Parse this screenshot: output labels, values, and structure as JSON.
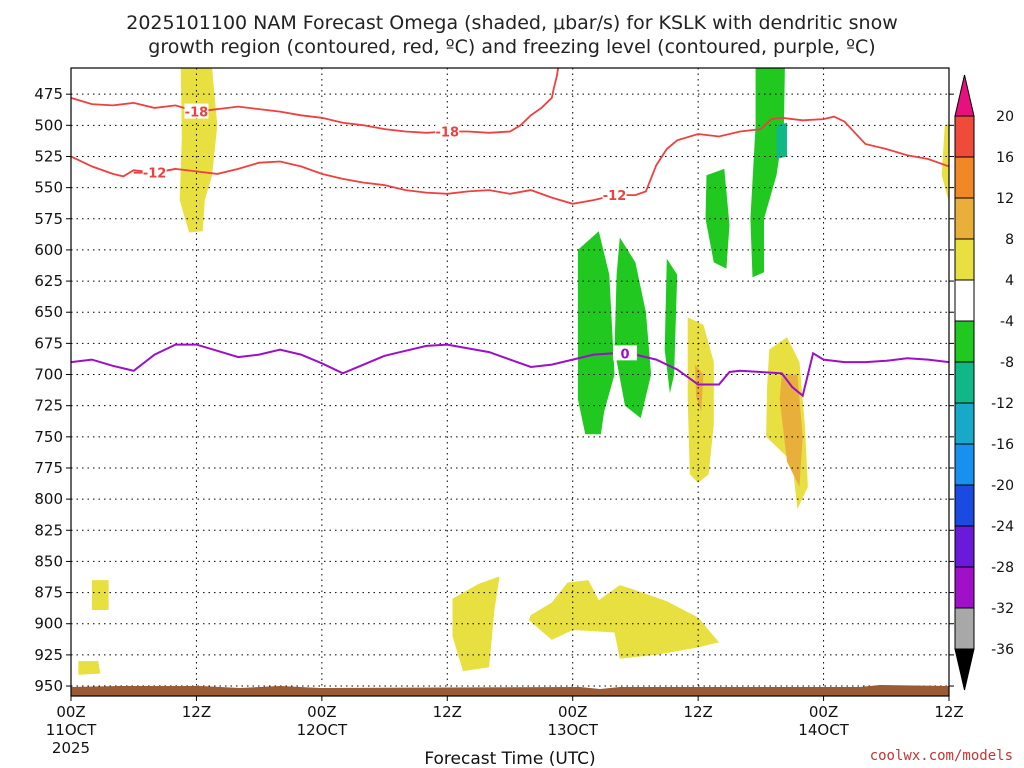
{
  "chart_data": {
    "type": "time-height",
    "title": [
      "2025101100 NAM Forecast Omega (shaded, μbar/s) for KSLK with dendritic snow",
      "growth region (contoured, red, ºC) and freezing level (contoured, purple, ºC)"
    ],
    "xlabel": "Forecast Time (UTC)",
    "credit": "coolwx.com/models",
    "x_range_hours": [
      0,
      84
    ],
    "x_ticks": [
      {
        "hour": 0,
        "label": "00Z",
        "sub": "11OCT",
        "sub2": "2025"
      },
      {
        "hour": 12,
        "label": "12Z"
      },
      {
        "hour": 24,
        "label": "00Z",
        "sub": "12OCT"
      },
      {
        "hour": 36,
        "label": "12Z"
      },
      {
        "hour": 48,
        "label": "00Z",
        "sub": "13OCT"
      },
      {
        "hour": 60,
        "label": "12Z"
      },
      {
        "hour": 72,
        "label": "00Z",
        "sub": "14OCT"
      },
      {
        "hour": 84,
        "label": "12Z"
      }
    ],
    "y_range_hpa": [
      454,
      958
    ],
    "y_ticks": [
      475,
      500,
      525,
      550,
      575,
      600,
      625,
      650,
      675,
      700,
      725,
      750,
      775,
      800,
      825,
      850,
      875,
      900,
      925,
      950
    ],
    "colorbar": {
      "levels": [
        -36,
        -32,
        -28,
        -24,
        -20,
        -16,
        -12,
        -8,
        -4,
        4,
        8,
        12,
        16,
        20
      ],
      "labels": [
        "20",
        "16",
        "12",
        "8",
        "4",
        "-4",
        "-8",
        "-12",
        "-16",
        "-20",
        "-24",
        "-28",
        "-32",
        "-36"
      ],
      "colors_top_down": [
        "#e8107e",
        "#f04a3a",
        "#f08826",
        "#e8b03a",
        "#e8e040",
        "#ffffff",
        "#20c820",
        "#10b888",
        "#18a8c8",
        "#1890f0",
        "#1a4ae0",
        "#6a1ad8",
        "#a010c8",
        "#a8a8a8",
        "#000000"
      ]
    },
    "contours": [
      {
        "name": "minus18",
        "label": "-18",
        "color": "#ee4040",
        "points": [
          [
            0,
            478
          ],
          [
            2,
            483
          ],
          [
            4,
            484
          ],
          [
            6,
            482
          ],
          [
            8,
            486
          ],
          [
            10,
            484
          ],
          [
            12,
            489
          ],
          [
            14,
            487
          ],
          [
            16,
            485
          ],
          [
            18,
            487
          ],
          [
            20,
            489
          ],
          [
            22,
            492
          ],
          [
            24,
            494
          ],
          [
            26,
            498
          ],
          [
            28,
            500
          ],
          [
            30,
            503
          ],
          [
            32,
            505
          ],
          [
            34,
            506
          ],
          [
            36,
            505
          ],
          [
            38,
            505
          ],
          [
            40,
            506
          ],
          [
            42,
            505
          ],
          [
            43,
            500
          ],
          [
            44,
            492
          ],
          [
            45,
            486
          ],
          [
            46,
            478
          ],
          [
            46.2,
            470
          ],
          [
            46.5,
            460
          ],
          [
            46.6,
            454
          ]
        ],
        "label_at": [
          36,
          505
        ]
      },
      {
        "name": "minus18b",
        "color": "#ee4040",
        "points": [
          [
            11,
            490
          ],
          [
            12,
            489
          ],
          [
            14,
            487
          ]
        ],
        "label": "-18",
        "label_at": [
          12,
          489
        ]
      },
      {
        "name": "minus12",
        "label": "-12",
        "color": "#ee4040",
        "points": [
          [
            0,
            525
          ],
          [
            2,
            533
          ],
          [
            4,
            539
          ],
          [
            5,
            541
          ],
          [
            6,
            536
          ],
          [
            8,
            538
          ],
          [
            10,
            535
          ],
          [
            12,
            537
          ],
          [
            14,
            539
          ],
          [
            16,
            535
          ],
          [
            18,
            530
          ],
          [
            20,
            529
          ],
          [
            22,
            533
          ],
          [
            24,
            539
          ],
          [
            26,
            543
          ],
          [
            28,
            546
          ],
          [
            30,
            548
          ],
          [
            32,
            552
          ],
          [
            34,
            554
          ],
          [
            36,
            555
          ],
          [
            38,
            553
          ],
          [
            40,
            552
          ],
          [
            42,
            555
          ],
          [
            44,
            552
          ],
          [
            46,
            558
          ],
          [
            48,
            563
          ],
          [
            50,
            560
          ],
          [
            52,
            556
          ],
          [
            54,
            556
          ],
          [
            55,
            553
          ],
          [
            56,
            532
          ],
          [
            57,
            519
          ],
          [
            58,
            512
          ],
          [
            60,
            507
          ],
          [
            62,
            509
          ],
          [
            64,
            505
          ],
          [
            66,
            503
          ],
          [
            67,
            495
          ],
          [
            68,
            494
          ],
          [
            70,
            496
          ],
          [
            72,
            495
          ],
          [
            73,
            493
          ],
          [
            74,
            497
          ],
          [
            75,
            506
          ],
          [
            76,
            515
          ],
          [
            78,
            519
          ],
          [
            80,
            524
          ],
          [
            82,
            527
          ],
          [
            84,
            533
          ],
          [
            85,
            535
          ]
        ],
        "label_at": [
          52,
          556
        ]
      },
      {
        "name": "minus12b",
        "color": "#ee4040",
        "points": [
          [
            6,
            538
          ],
          [
            8,
            538
          ],
          [
            10,
            535
          ]
        ],
        "label": "-12",
        "label_at": [
          8,
          538
        ]
      },
      {
        "name": "freezing0",
        "label": "0",
        "color": "#9b10c8",
        "points": [
          [
            0,
            690
          ],
          [
            2,
            688
          ],
          [
            4,
            693
          ],
          [
            6,
            697
          ],
          [
            8,
            684
          ],
          [
            10,
            676
          ],
          [
            12,
            676
          ],
          [
            14,
            681
          ],
          [
            16,
            686
          ],
          [
            18,
            684
          ],
          [
            20,
            680
          ],
          [
            22,
            684
          ],
          [
            24,
            691
          ],
          [
            26,
            699
          ],
          [
            28,
            692
          ],
          [
            30,
            685
          ],
          [
            32,
            681
          ],
          [
            34,
            677
          ],
          [
            36,
            676
          ],
          [
            38,
            679
          ],
          [
            40,
            682
          ],
          [
            42,
            688
          ],
          [
            44,
            694
          ],
          [
            46,
            692
          ],
          [
            48,
            688
          ],
          [
            50,
            684
          ],
          [
            52,
            683
          ],
          [
            54,
            684
          ],
          [
            56,
            688
          ],
          [
            58,
            696
          ],
          [
            60,
            708
          ],
          [
            62,
            708
          ],
          [
            63,
            698
          ],
          [
            64,
            697
          ],
          [
            66,
            698
          ],
          [
            68,
            699
          ],
          [
            69,
            710
          ],
          [
            70,
            717
          ],
          [
            70.5,
            700
          ],
          [
            71,
            683
          ],
          [
            72,
            688
          ],
          [
            74,
            690
          ],
          [
            76,
            690
          ],
          [
            78,
            689
          ],
          [
            80,
            687
          ],
          [
            82,
            688
          ],
          [
            84,
            690
          ],
          [
            85,
            692
          ]
        ],
        "label_at": [
          53,
          683
        ]
      }
    ],
    "shaded_regions": [
      {
        "name": "yellow-top-left",
        "value_range": "4 to 8",
        "color": "#e8e040",
        "points": [
          [
            10.5,
            454
          ],
          [
            13.5,
            454
          ],
          [
            14,
            500
          ],
          [
            13.5,
            540
          ],
          [
            12.8,
            560
          ],
          [
            12.6,
            585
          ],
          [
            11.3,
            586
          ],
          [
            10.4,
            560
          ],
          [
            10.6,
            510
          ]
        ]
      },
      {
        "name": "yellow-small-left",
        "value_range": "4 to 8",
        "color": "#e8e040",
        "points": [
          [
            2,
            865
          ],
          [
            3.6,
            865
          ],
          [
            3.6,
            889
          ],
          [
            2,
            889
          ]
        ]
      },
      {
        "name": "yellow-small-left2",
        "value_range": "4 to 8",
        "color": "#e8e040",
        "points": [
          [
            0.7,
            930
          ],
          [
            2.6,
            930
          ],
          [
            2.8,
            940
          ],
          [
            0.7,
            941
          ]
        ]
      },
      {
        "name": "yellow-mid1",
        "value_range": "4 to 8",
        "color": "#e8e040",
        "points": [
          [
            36.5,
            880
          ],
          [
            39,
            868
          ],
          [
            41,
            862
          ],
          [
            40.5,
            890
          ],
          [
            40,
            935
          ],
          [
            37.5,
            938
          ],
          [
            36.5,
            910
          ]
        ]
      },
      {
        "name": "yellow-mid2",
        "value_range": "4 to 8",
        "color": "#e8e040",
        "points": [
          [
            44,
            893
          ],
          [
            46,
            883
          ],
          [
            47.5,
            867
          ],
          [
            49.5,
            865
          ],
          [
            50.5,
            881
          ],
          [
            52.5,
            869
          ],
          [
            54,
            873
          ],
          [
            57,
            882
          ],
          [
            60,
            895
          ],
          [
            62,
            915
          ],
          [
            60,
            919
          ],
          [
            56,
            925
          ],
          [
            52.5,
            928
          ],
          [
            52,
            907
          ],
          [
            48,
            905
          ],
          [
            46,
            913
          ],
          [
            43.8,
            897
          ]
        ]
      },
      {
        "name": "yellow-right-col",
        "value_range": "4 to 12",
        "color": "#e8e040",
        "points": [
          [
            59,
            654
          ],
          [
            60.5,
            660
          ],
          [
            61.5,
            690
          ],
          [
            61.5,
            740
          ],
          [
            61,
            780
          ],
          [
            60,
            787
          ],
          [
            59.2,
            780
          ],
          [
            59,
            720
          ]
        ]
      },
      {
        "name": "yellow-right-col2",
        "value_range": "4 to 12",
        "color": "#e8e040",
        "points": [
          [
            66.8,
            680
          ],
          [
            68.5,
            670
          ],
          [
            69.7,
            690
          ],
          [
            70.2,
            740
          ],
          [
            70.5,
            790
          ],
          [
            69.5,
            808
          ],
          [
            69,
            770
          ],
          [
            66.5,
            750
          ],
          [
            66.6,
            710
          ]
        ]
      },
      {
        "name": "yellow-far-right",
        "value_range": "4 to 8",
        "color": "#e8e040",
        "points": [
          [
            83.6,
            500
          ],
          [
            84.3,
            498
          ],
          [
            84.8,
            520
          ],
          [
            85,
            545
          ],
          [
            84.1,
            565
          ],
          [
            83.3,
            540
          ]
        ]
      },
      {
        "name": "green-right-tall",
        "value_range": "-4 to -8",
        "color": "#20c820",
        "points": [
          [
            65.5,
            454
          ],
          [
            68.3,
            454
          ],
          [
            68.2,
            500
          ],
          [
            67.5,
            540
          ],
          [
            66.3,
            575
          ],
          [
            66.3,
            618
          ],
          [
            65.2,
            622
          ],
          [
            65,
            575
          ],
          [
            65.5,
            500
          ]
        ]
      },
      {
        "name": "green-mid-a",
        "value_range": "-4 to -8",
        "color": "#20c820",
        "points": [
          [
            60.8,
            540
          ],
          [
            62.5,
            535
          ],
          [
            63,
            580
          ],
          [
            62.7,
            615
          ],
          [
            61.5,
            610
          ],
          [
            60.7,
            575
          ]
        ]
      },
      {
        "name": "green-mid-b",
        "value_range": "-4 to -8",
        "color": "#20c820",
        "points": [
          [
            57,
            607
          ],
          [
            58,
            620
          ],
          [
            57.7,
            700
          ],
          [
            57.3,
            715
          ],
          [
            56.8,
            680
          ]
        ]
      },
      {
        "name": "green-big-left",
        "value_range": "-4 to -8",
        "color": "#20c820",
        "points": [
          [
            48.5,
            600
          ],
          [
            50.5,
            585
          ],
          [
            51.5,
            620
          ],
          [
            52,
            700
          ],
          [
            51,
            730
          ],
          [
            50.7,
            748
          ],
          [
            49.2,
            748
          ],
          [
            48.5,
            720
          ]
        ]
      },
      {
        "name": "green-big-right",
        "value_range": "-4 to -8",
        "color": "#20c820",
        "points": [
          [
            52.5,
            590
          ],
          [
            54,
            610
          ],
          [
            55,
            650
          ],
          [
            55.5,
            700
          ],
          [
            54.5,
            735
          ],
          [
            53,
            725
          ],
          [
            52,
            680
          ],
          [
            52.2,
            620
          ]
        ]
      },
      {
        "name": "teal-core",
        "value_range": "-8 to -12",
        "color": "#10b888",
        "points": [
          [
            67.5,
            500
          ],
          [
            68.5,
            498
          ],
          [
            68.5,
            525
          ],
          [
            67.5,
            527
          ]
        ]
      },
      {
        "name": "orange-core-a",
        "value_range": "8 to 12",
        "color": "#e8b03a",
        "points": [
          [
            59.7,
            692
          ],
          [
            60.5,
            700
          ],
          [
            60.3,
            730
          ],
          [
            59.8,
            718
          ]
        ]
      },
      {
        "name": "orange-core-b",
        "value_range": "8 to 12",
        "color": "#e8b03a",
        "points": [
          [
            68,
            700
          ],
          [
            69.5,
            700
          ],
          [
            70,
            750
          ],
          [
            69.7,
            790
          ],
          [
            68.5,
            770
          ],
          [
            67.8,
            720
          ]
        ]
      }
    ]
  }
}
